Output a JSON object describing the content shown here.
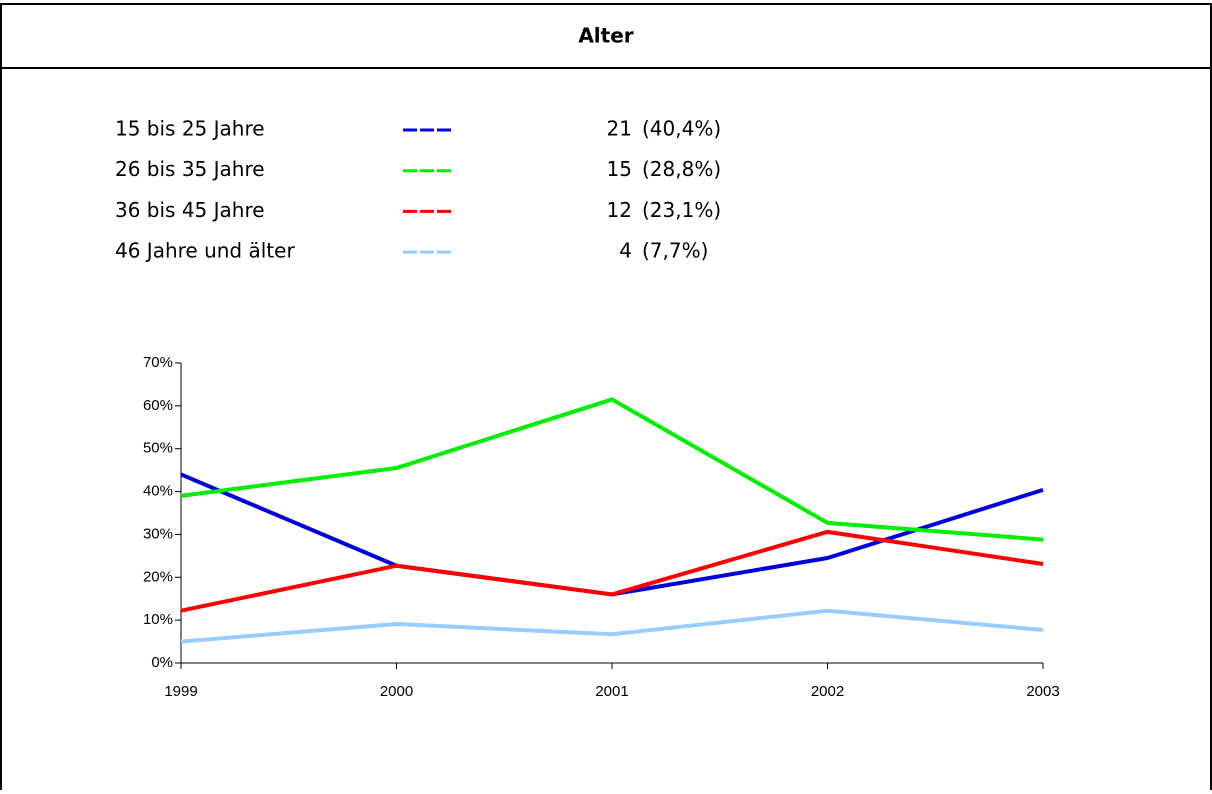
{
  "chart_data": {
    "type": "line",
    "title": "Alter",
    "categories": [
      "1999",
      "2000",
      "2001",
      "2002",
      "2003"
    ],
    "series": [
      {
        "name": "15 bis 25 Jahre",
        "color": "#0000dd",
        "count": 21,
        "share": "(40,4%)",
        "values": [
          44,
          22.7,
          16,
          24.5,
          40.4
        ]
      },
      {
        "name": "26 bis 35 Jahre",
        "color": "#00ee00",
        "count": 15,
        "share": "(28,8%)",
        "values": [
          39,
          45.5,
          61.5,
          32.7,
          28.8
        ]
      },
      {
        "name": "36 bis 45 Jahre",
        "color": "#ff0000",
        "count": 12,
        "share": "(23,1%)",
        "values": [
          12.2,
          22.7,
          16,
          30.6,
          23.1
        ]
      },
      {
        "name": "46 Jahre und älter",
        "color": "#99ccff",
        "count": 4,
        "share": "(7,7%)",
        "values": [
          5,
          9.1,
          6.7,
          12.2,
          7.7
        ]
      }
    ],
    "ylim": [
      0,
      70
    ],
    "yticks": [
      {
        "value": 0,
        "label": "0%"
      },
      {
        "value": 10,
        "label": "10%"
      },
      {
        "value": 20,
        "label": "20%"
      },
      {
        "value": 30,
        "label": "30%"
      },
      {
        "value": 40,
        "label": "40%"
      },
      {
        "value": 50,
        "label": "50%"
      },
      {
        "value": 60,
        "label": "60%"
      },
      {
        "value": 70,
        "label": "70%"
      }
    ],
    "grid": false
  }
}
